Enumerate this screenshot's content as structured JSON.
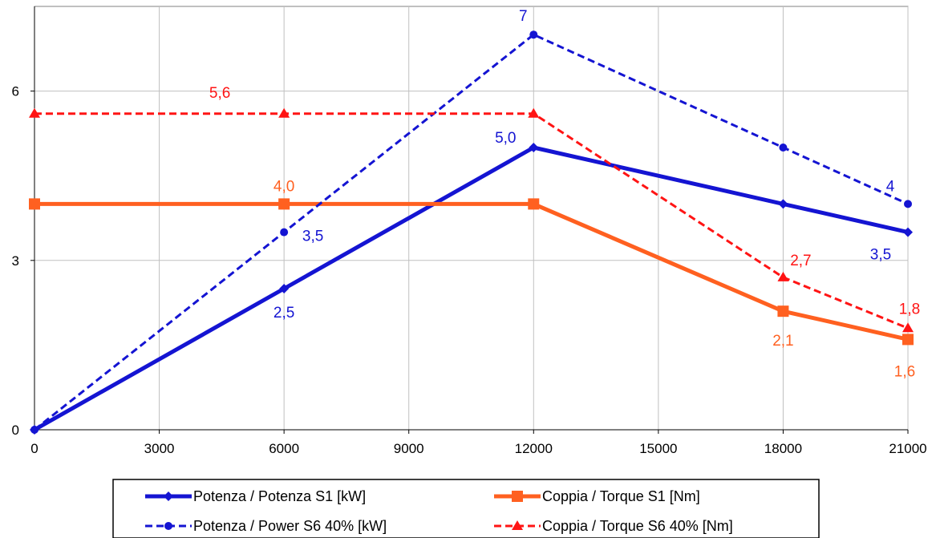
{
  "chart_data": {
    "type": "line",
    "title": "",
    "xlabel": "",
    "ylabel": "",
    "xlim": [
      0,
      21000
    ],
    "ylim": [
      0,
      7.5
    ],
    "x_ticks": [
      0,
      3000,
      6000,
      9000,
      12000,
      15000,
      18000,
      21000
    ],
    "x_tick_labels": [
      "0",
      "3000",
      "6000",
      "9000",
      "12000",
      "15000",
      "18000",
      "21000"
    ],
    "y_ticks": [
      0,
      3,
      6
    ],
    "y_tick_labels": [
      "0",
      "3",
      "6"
    ],
    "grid": true,
    "legend_position": "bottom",
    "series": [
      {
        "name": "Potenza / Potenza S1 [kW]",
        "color": "#1414d2",
        "line": "solid",
        "marker": "diamond",
        "x": [
          0,
          6000,
          12000,
          18000,
          21000
        ],
        "y": [
          0,
          2.5,
          5.0,
          4.0,
          3.5
        ],
        "labels": [
          {
            "index": 1,
            "text": "2,5"
          },
          {
            "index": 2,
            "text": "5,0"
          },
          {
            "index": 4,
            "text": "3,5"
          }
        ]
      },
      {
        "name": "Coppia / Torque S1 [Nm]",
        "color": "#ff6020",
        "line": "solid",
        "marker": "square",
        "x": [
          0,
          6000,
          12000,
          18000,
          21000
        ],
        "y": [
          4.0,
          4.0,
          4.0,
          2.1,
          1.6
        ],
        "labels": [
          {
            "index": 1,
            "text": "4,0"
          },
          {
            "index": 3,
            "text": "2,1"
          },
          {
            "index": 4,
            "text": "1,6"
          }
        ]
      },
      {
        "name": "Potenza / Power S6 40% [kW]",
        "color": "#1414d2",
        "line": "dashed",
        "marker": "circle",
        "x": [
          0,
          6000,
          12000,
          18000,
          21000
        ],
        "y": [
          0,
          3.5,
          7.0,
          5.0,
          4.0
        ],
        "labels": [
          {
            "index": 1,
            "text": "3,5"
          },
          {
            "index": 2,
            "text": "7"
          },
          {
            "index": 4,
            "text": "4"
          }
        ]
      },
      {
        "name": "Coppia / Torque S6 40% [Nm]",
        "color": "#ff1414",
        "line": "dashed",
        "marker": "triangle",
        "x": [
          0,
          6000,
          12000,
          18000,
          21000
        ],
        "y": [
          5.6,
          5.6,
          5.6,
          2.7,
          1.8
        ],
        "labels": [
          {
            "index": 1,
            "text": "5,6"
          },
          {
            "index": 3,
            "text": "2,7"
          },
          {
            "index": 4,
            "text": "1,8"
          }
        ]
      }
    ]
  }
}
